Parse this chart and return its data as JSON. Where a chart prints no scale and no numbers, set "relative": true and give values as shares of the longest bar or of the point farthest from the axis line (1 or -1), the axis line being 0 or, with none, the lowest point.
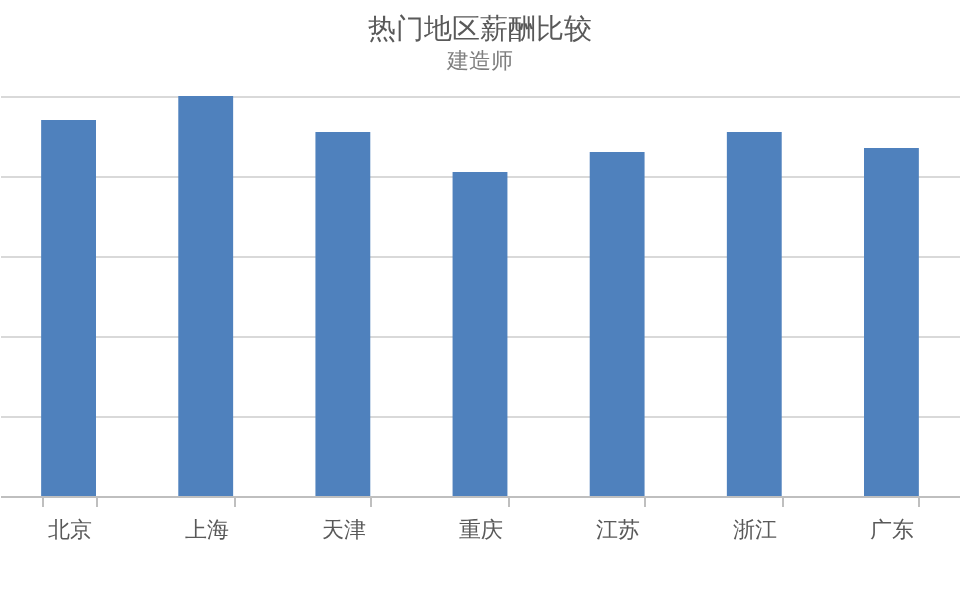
{
  "chart_data": {
    "type": "bar",
    "title": "热门地区薪酬比较",
    "subtitle": "建造师",
    "categories": [
      "北京",
      "上海",
      "天津",
      "重庆",
      "江苏",
      "浙江",
      "广东"
    ],
    "values": [
      0.94,
      1,
      0.91,
      0.81,
      0.86,
      0.91,
      0.87
    ],
    "color": "#4f81bd",
    "relative": true,
    "grid": "y"
  }
}
